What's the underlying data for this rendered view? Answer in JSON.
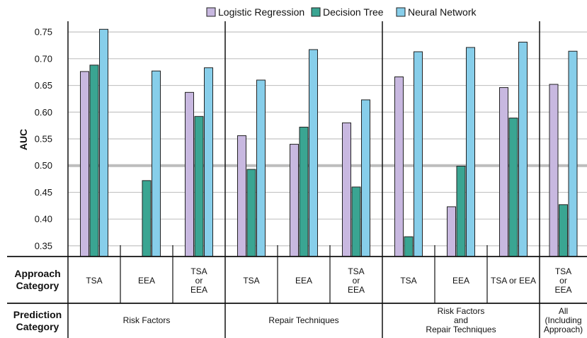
{
  "chart_data": {
    "type": "bar",
    "ylabel": "AUC",
    "ylim": [
      0.33,
      0.77
    ],
    "yticks": [
      "0.35",
      "0.40",
      "0.45",
      "0.50",
      "0.55",
      "0.60",
      "0.65",
      "0.70",
      "0.75"
    ],
    "reference_line": 0.5,
    "legend_position": "top",
    "series": [
      {
        "name": "Logistic Regression",
        "color": "#c8b8e0",
        "values": [
          0.676,
          null,
          0.637,
          0.556,
          0.54,
          0.58,
          0.666,
          0.423,
          0.646,
          0.652
        ]
      },
      {
        "name": "Decision Tree",
        "color": "#3aa592",
        "values": [
          0.688,
          0.472,
          0.592,
          0.493,
          0.572,
          0.46,
          0.367,
          0.499,
          0.589,
          0.427
        ]
      },
      {
        "name": "Neural Network",
        "color": "#87ceea",
        "values": [
          0.755,
          0.677,
          0.683,
          0.66,
          0.717,
          0.623,
          0.713,
          0.721,
          0.731,
          0.714
        ]
      }
    ],
    "approach_categories": [
      [
        "TSA"
      ],
      [
        "EEA"
      ],
      [
        "TSA",
        "or",
        "EEA"
      ],
      [
        "TSA"
      ],
      [
        "EEA"
      ],
      [
        "TSA",
        "or",
        "EEA"
      ],
      [
        "TSA"
      ],
      [
        "EEA"
      ],
      [
        "TSA or EEA"
      ],
      [
        "TSA",
        "or",
        "EEA"
      ]
    ],
    "prediction_categories": [
      {
        "lines": [
          "Risk Factors"
        ],
        "span": 3
      },
      {
        "lines": [
          "Repair Techniques"
        ],
        "span": 3
      },
      {
        "lines": [
          "Risk Factors",
          "and",
          "Repair Techniques"
        ],
        "span": 3
      },
      {
        "lines": [
          "All",
          "(Including",
          "Approach)"
        ],
        "span": 1
      }
    ]
  },
  "table": {
    "approach_header": [
      "Approach",
      "Category"
    ],
    "prediction_header": [
      "Prediction",
      "Category"
    ]
  }
}
